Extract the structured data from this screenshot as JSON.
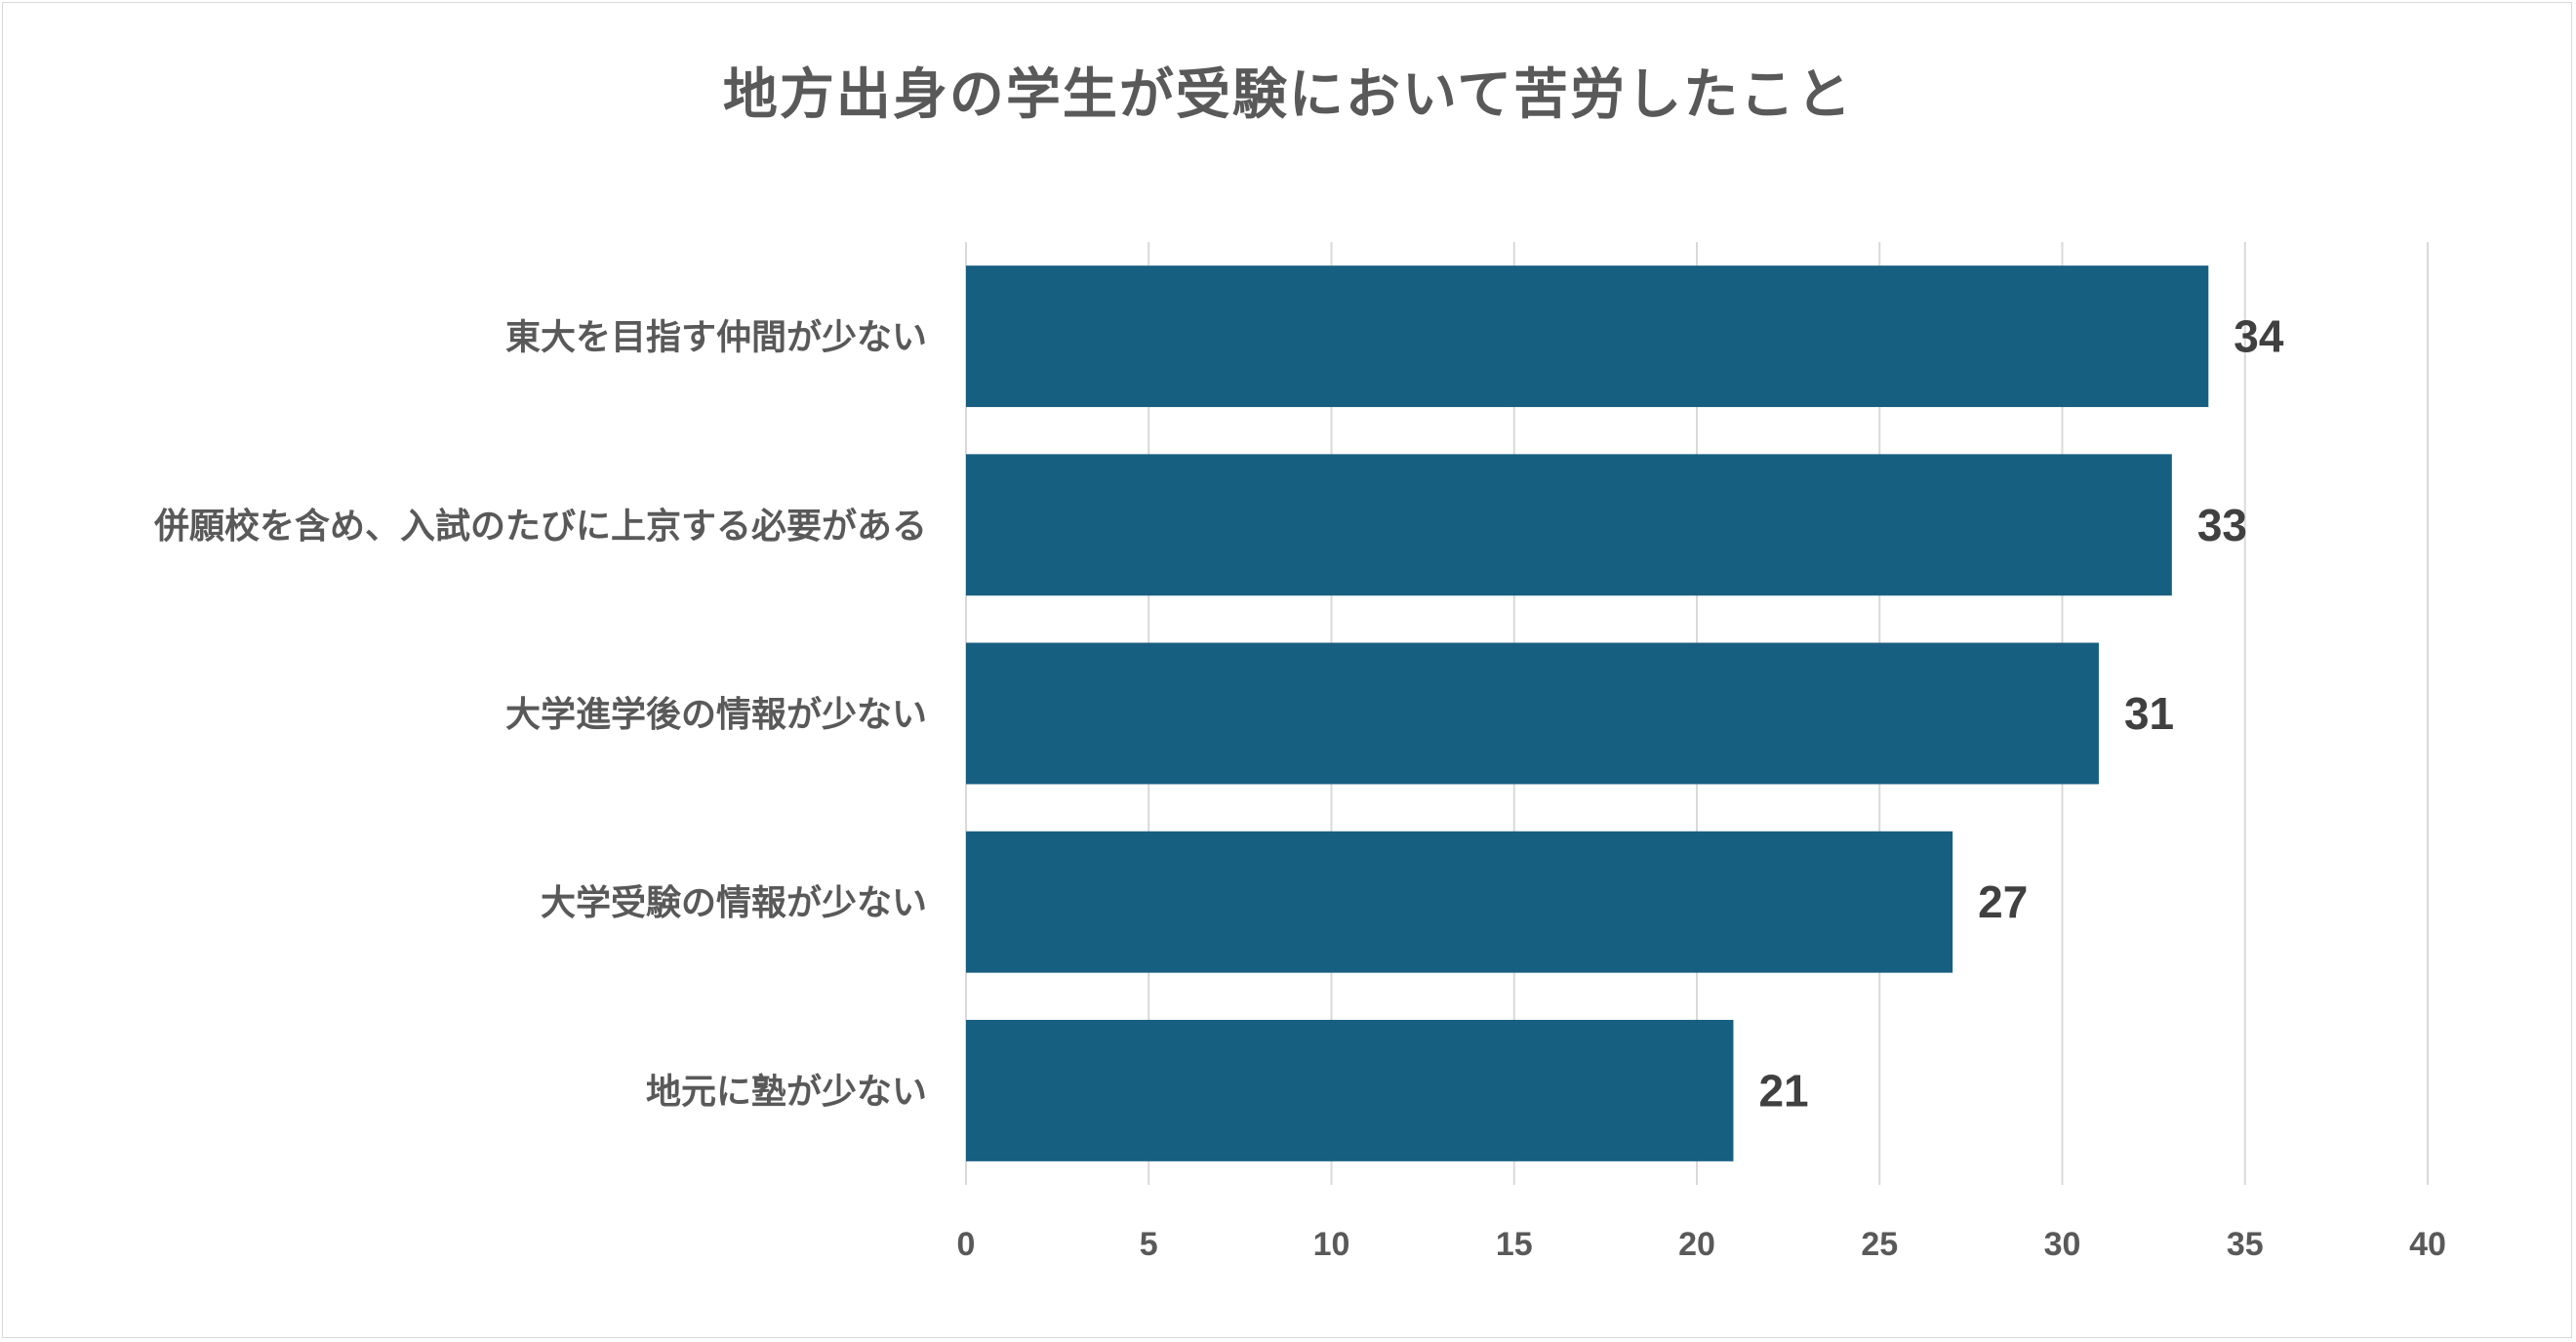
{
  "chart_data": {
    "type": "bar",
    "orientation": "horizontal",
    "title": "地方出身の学生が受験において苦労したこと",
    "categories": [
      "東大を目指す仲間が少ない",
      "併願校を含め、入試のたびに上京する必要がある",
      "大学進学後の情報が少ない",
      "大学受験の情報が少ない",
      "地元に塾が少ない"
    ],
    "values": [
      34,
      33,
      31,
      27,
      21
    ],
    "xlim": [
      0,
      40
    ],
    "xticks": [
      0,
      5,
      10,
      15,
      20,
      25,
      30,
      35,
      40
    ],
    "grid": true,
    "legend": "none",
    "bar_color": "#175F81",
    "data_labels": true
  }
}
